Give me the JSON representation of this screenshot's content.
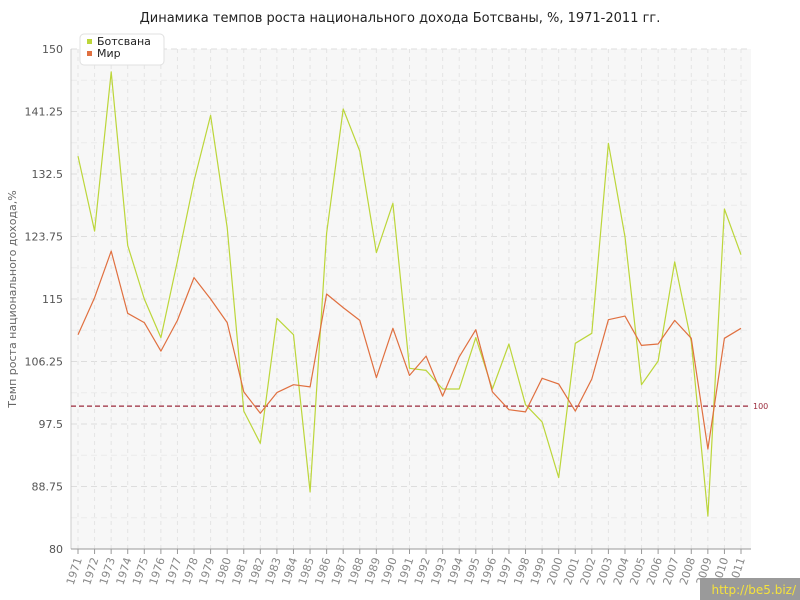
{
  "chart_data": {
    "type": "line",
    "title": "Динамика темпов роста национального дохода Ботсваны, %, 1971-2011 гг.",
    "xlabel": "",
    "ylabel": "Темп роста национального дохода,%",
    "ylim": [
      80,
      150
    ],
    "yticks": [
      "80",
      "88.75",
      "97.5",
      "106.25",
      "115",
      "123.75",
      "132.5",
      "141.25",
      "150"
    ],
    "categories": [
      "1971",
      "1972",
      "1973",
      "1974",
      "1975",
      "1976",
      "1977",
      "1978",
      "1979",
      "1980",
      "1981",
      "1982",
      "1983",
      "1984",
      "1985",
      "1986",
      "1987",
      "1988",
      "1989",
      "1990",
      "1991",
      "1992",
      "1993",
      "1994",
      "1995",
      "1996",
      "1997",
      "1998",
      "1999",
      "2000",
      "2001",
      "2002",
      "2003",
      "2004",
      "2005",
      "2006",
      "2007",
      "2008",
      "2009",
      "2010",
      "2011"
    ],
    "series": [
      {
        "name": "Ботсвана",
        "color": "#bcd63a",
        "values": [
          135.0,
          124.5,
          146.8,
          122.5,
          115.0,
          109.6,
          120.3,
          131.5,
          140.7,
          125.0,
          99.3,
          94.8,
          112.3,
          110.0,
          88.0,
          124.2,
          141.6,
          135.7,
          121.5,
          128.4,
          105.3,
          105.0,
          102.4,
          102.4,
          109.6,
          102.4,
          108.7,
          100.2,
          97.8,
          90.0,
          108.8,
          110.2,
          136.8,
          123.7,
          103.0,
          106.3,
          120.2,
          109.0,
          84.6,
          127.6,
          121.2
        ]
      },
      {
        "name": "Мир",
        "color": "#e07040",
        "values": [
          110.0,
          115.2,
          121.7,
          113.0,
          111.7,
          107.7,
          112.0,
          118.0,
          115.0,
          111.7,
          102.0,
          99.0,
          101.9,
          103.0,
          102.7,
          115.7,
          113.8,
          112.0,
          104.0,
          110.9,
          104.3,
          107.0,
          101.4,
          106.9,
          110.7,
          102.0,
          99.5,
          99.2,
          103.9,
          103.1,
          99.3,
          103.8,
          112.1,
          112.6,
          108.5,
          108.7,
          112.0,
          109.5,
          94.0,
          109.5,
          110.9
        ]
      }
    ],
    "reference_line": {
      "value": 100,
      "label": "100",
      "color": "#9b2a3c"
    },
    "grid": true,
    "legend_position": "top-left"
  },
  "watermark": "http://be5.biz/"
}
